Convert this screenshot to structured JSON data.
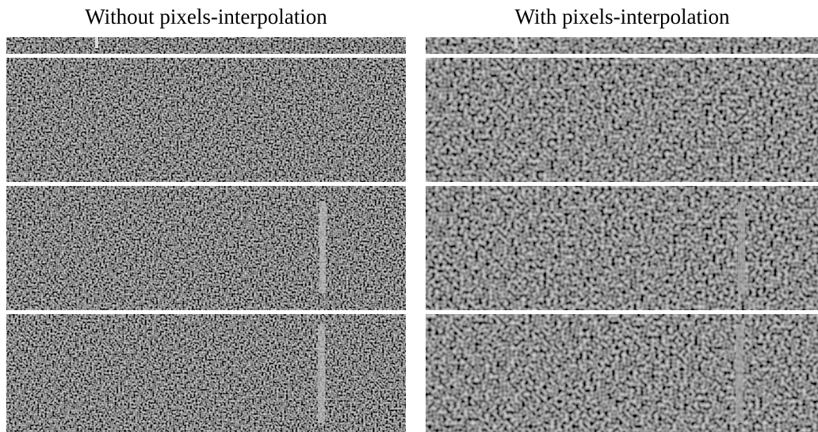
{
  "figure": {
    "left_title": "Without pixels-interpolation",
    "right_title": "With pixels-interpolation"
  }
}
